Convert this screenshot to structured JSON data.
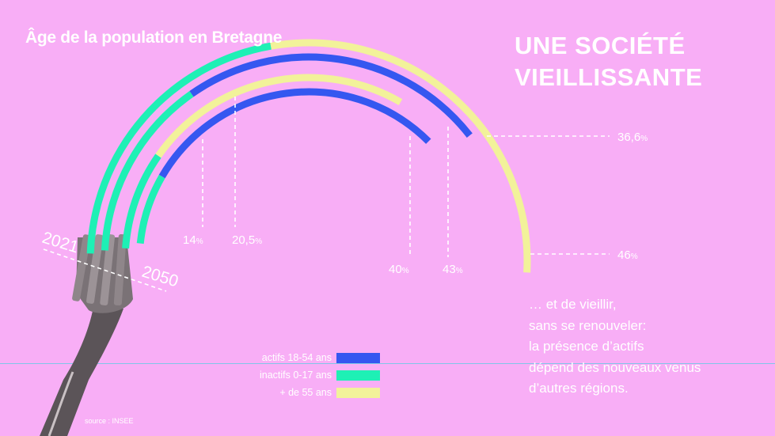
{
  "title": "Âge de la population en Bretagne",
  "headline": [
    "UNE SOCIÉTÉ",
    "VIEILLISSANTE"
  ],
  "note_lines": [
    "… et de vieillir,",
    "sans se renouveler:",
    "la présence d’actifs",
    "dépend des nouveaux venus",
    "d’autres régions."
  ],
  "source": "source : INSEE",
  "colors": {
    "background": "#F8AEF6",
    "actifs": "#3557F0",
    "inactifs": "#1EF0B5",
    "seniors": "#F2F29A",
    "text": "#ffffff",
    "guideline": "#7FC6E8"
  },
  "icons": {
    "fork": "fork-photo"
  },
  "chart_data": {
    "type": "arc-stacked",
    "series_labels": [
      "actifs 18-54 ans",
      "inactifs 0-17 ans",
      "+ de 55 ans"
    ],
    "years": [
      {
        "year": "2021",
        "segments": [
          {
            "group": "inactifs 0-17 ans",
            "value": null
          },
          {
            "group": "actifs 18-54 ans",
            "value": 43,
            "label": "43%"
          },
          {
            "group": "+ de 55 ans",
            "value": 36.6,
            "label": "36,6%"
          }
        ],
        "marks": [
          {
            "label": "20,5%",
            "value": 20.5
          },
          {
            "label": "43%",
            "value": 43
          },
          {
            "label": "36,6%",
            "value": 36.6
          }
        ]
      },
      {
        "year": "2050",
        "segments": [
          {
            "group": "inactifs 0-17 ans",
            "value": 14,
            "label": "14%"
          },
          {
            "group": "actifs 18-54 ans",
            "value": 40,
            "label": "40%"
          },
          {
            "group": "+ de 55 ans",
            "value": 46,
            "label": "46%"
          }
        ],
        "marks": [
          {
            "label": "14%",
            "value": 14
          },
          {
            "label": "40%",
            "value": 40
          },
          {
            "label": "46%",
            "value": 46
          }
        ]
      }
    ],
    "year_labels": [
      "2021",
      "2050"
    ]
  }
}
